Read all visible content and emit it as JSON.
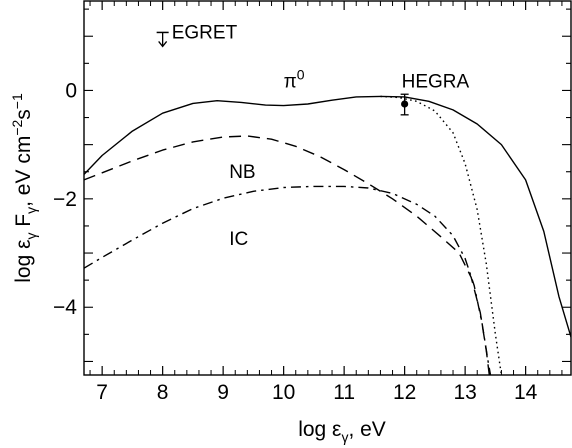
{
  "chart_data": {
    "type": "line",
    "xlabel_parts": [
      "log ε",
      "γ",
      ", eV"
    ],
    "ylabel_parts": [
      "log ε",
      "γ",
      " F",
      "γ",
      ", eV cm",
      "−2",
      "s",
      "−1"
    ],
    "xlim": [
      6.7,
      14.75
    ],
    "ylim": [
      -5.25,
      1.65
    ],
    "x_ticks": [
      7,
      8,
      9,
      10,
      11,
      12,
      13,
      14
    ],
    "y_ticks": [
      -4,
      -2,
      0
    ],
    "y_tick_labels": [
      "−4",
      "−2",
      "0"
    ],
    "series": [
      {
        "id": "pi0",
        "style": "solid",
        "points": [
          [
            6.7,
            -1.55
          ],
          [
            7.0,
            -1.2
          ],
          [
            7.5,
            -0.75
          ],
          [
            8.0,
            -0.42
          ],
          [
            8.5,
            -0.24
          ],
          [
            8.9,
            -0.19
          ],
          [
            9.3,
            -0.22
          ],
          [
            9.7,
            -0.27
          ],
          [
            10.0,
            -0.28
          ],
          [
            10.4,
            -0.25
          ],
          [
            10.8,
            -0.18
          ],
          [
            11.2,
            -0.12
          ],
          [
            11.6,
            -0.11
          ],
          [
            12.0,
            -0.12
          ],
          [
            12.4,
            -0.2
          ],
          [
            12.8,
            -0.36
          ],
          [
            13.2,
            -0.62
          ],
          [
            13.6,
            -1.0
          ],
          [
            14.0,
            -1.65
          ],
          [
            14.3,
            -2.6
          ],
          [
            14.55,
            -3.8
          ],
          [
            14.75,
            -4.55
          ]
        ]
      },
      {
        "id": "pi0-cutoff",
        "style": "dotted",
        "points": [
          [
            11.6,
            -0.11
          ],
          [
            11.9,
            -0.13
          ],
          [
            12.2,
            -0.2
          ],
          [
            12.5,
            -0.38
          ],
          [
            12.8,
            -0.78
          ],
          [
            13.0,
            -1.35
          ],
          [
            13.2,
            -2.2
          ],
          [
            13.35,
            -3.2
          ],
          [
            13.5,
            -4.5
          ],
          [
            13.6,
            -5.25
          ]
        ]
      },
      {
        "id": "nb",
        "style": "dashed",
        "points": [
          [
            6.7,
            -1.65
          ],
          [
            7.0,
            -1.52
          ],
          [
            7.5,
            -1.3
          ],
          [
            8.0,
            -1.1
          ],
          [
            8.5,
            -0.95
          ],
          [
            9.0,
            -0.86
          ],
          [
            9.4,
            -0.84
          ],
          [
            9.8,
            -0.9
          ],
          [
            10.2,
            -1.03
          ],
          [
            10.6,
            -1.22
          ],
          [
            11.0,
            -1.46
          ],
          [
            11.4,
            -1.72
          ],
          [
            11.8,
            -2.0
          ],
          [
            12.2,
            -2.32
          ],
          [
            12.6,
            -2.7
          ],
          [
            12.9,
            -3.0
          ],
          [
            13.1,
            -3.45
          ],
          [
            13.25,
            -4.1
          ],
          [
            13.35,
            -4.8
          ],
          [
            13.4,
            -5.25
          ]
        ]
      },
      {
        "id": "ic",
        "style": "dashdot",
        "points": [
          [
            6.7,
            -3.28
          ],
          [
            7.0,
            -3.08
          ],
          [
            7.5,
            -2.76
          ],
          [
            8.0,
            -2.45
          ],
          [
            8.5,
            -2.18
          ],
          [
            9.0,
            -1.99
          ],
          [
            9.5,
            -1.86
          ],
          [
            10.0,
            -1.79
          ],
          [
            10.5,
            -1.77
          ],
          [
            11.0,
            -1.77
          ],
          [
            11.4,
            -1.8
          ],
          [
            11.8,
            -1.9
          ],
          [
            12.2,
            -2.1
          ],
          [
            12.5,
            -2.32
          ],
          [
            12.8,
            -2.68
          ],
          [
            13.0,
            -3.1
          ],
          [
            13.15,
            -3.6
          ],
          [
            13.28,
            -4.3
          ],
          [
            13.38,
            -5.0
          ],
          [
            13.42,
            -5.25
          ]
        ]
      }
    ],
    "annotations": [
      {
        "id": "egret",
        "text": "EGRET",
        "x": 8.15,
        "y": 1.07
      },
      {
        "id": "pi0",
        "text_base": "π",
        "text_sup": "0",
        "x": 10.0,
        "y": 0.05
      },
      {
        "id": "hegra",
        "text": "HEGRA",
        "x": 11.95,
        "y": 0.05
      },
      {
        "id": "nb",
        "text": "NB",
        "x": 9.1,
        "y": -1.62
      },
      {
        "id": "ic",
        "text": "IC",
        "x": 9.1,
        "y": -2.85
      }
    ],
    "data_points": [
      {
        "id": "hegra",
        "x": 12.0,
        "y": -0.25,
        "err_low": -0.45,
        "err_high": -0.07
      },
      {
        "id": "egret-upper-limit",
        "x": 8.0,
        "y": 1.07
      }
    ]
  }
}
